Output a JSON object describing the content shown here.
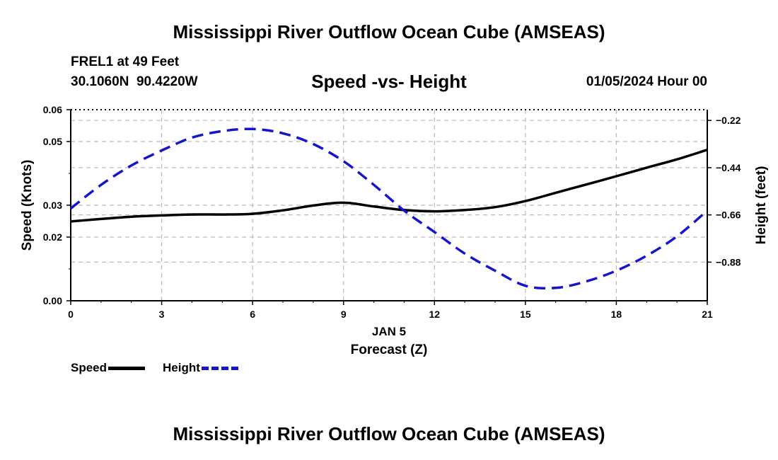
{
  "header": {
    "title": "Mississippi River Outflow Ocean Cube (AMSEAS)",
    "station": "FREL1 at 49 Feet",
    "coords": "30.1060N  90.4220W",
    "chart_title": "Speed -vs- Height",
    "date": "01/05/2024 Hour 00"
  },
  "footer": {
    "title": "Mississippi River Outflow Ocean Cube (AMSEAS)"
  },
  "legend": {
    "speed": "Speed",
    "height": "Height"
  },
  "colors": {
    "speed": "#000000",
    "height": "#1515cc",
    "grid": "#bbbbbb"
  },
  "chart_data": {
    "type": "line",
    "title": "Speed -vs- Height",
    "xlabel": "Forecast (Z)",
    "xlabel_date": "JAN 5",
    "xlim": [
      0,
      21
    ],
    "x_ticks": [
      0,
      3,
      6,
      9,
      12,
      15,
      18,
      21
    ],
    "x_tick_labels": [
      "0",
      "3",
      "6",
      "9",
      "12",
      "15",
      "18",
      "21"
    ],
    "ylabel_left": "Speed (Knots)",
    "ylim_left": [
      0,
      0.06
    ],
    "y_ticks_left": [
      0,
      0.02,
      0.03,
      0.05,
      0.06
    ],
    "y_tick_labels_left": [
      "0.00",
      "0.02",
      "0.03",
      "0.05",
      "0.06"
    ],
    "ylabel_right": "Height (feet)",
    "ylim_right": [
      -1.06,
      -0.17
    ],
    "y_ticks_right": [
      -0.22,
      -0.44,
      -0.66,
      -0.88
    ],
    "y_tick_labels_right": [
      "−0.22",
      "−0.44",
      "−0.66",
      "−0.88"
    ],
    "grid": true,
    "series": [
      {
        "name": "Speed",
        "axis": "left",
        "style": "solid",
        "x": [
          0,
          1,
          2,
          3,
          4,
          5,
          6,
          7,
          8,
          9,
          10,
          11,
          12,
          13,
          14,
          15,
          16,
          17,
          18,
          19,
          20,
          21
        ],
        "values": [
          0.0249,
          0.0257,
          0.0264,
          0.0268,
          0.0271,
          0.0271,
          0.0273,
          0.0284,
          0.0299,
          0.0308,
          0.0296,
          0.0285,
          0.0281,
          0.0285,
          0.0294,
          0.0313,
          0.0339,
          0.0365,
          0.0391,
          0.0418,
          0.0444,
          0.0474
        ]
      },
      {
        "name": "Height",
        "axis": "right",
        "style": "dashed",
        "x": [
          0,
          1,
          2,
          3,
          4,
          5,
          6,
          7,
          8,
          9,
          10,
          11,
          12,
          13,
          14,
          15,
          16,
          17,
          18,
          19,
          20,
          21
        ],
        "values": [
          -0.63,
          -0.52,
          -0.43,
          -0.36,
          -0.3,
          -0.27,
          -0.26,
          -0.28,
          -0.33,
          -0.41,
          -0.52,
          -0.64,
          -0.74,
          -0.84,
          -0.92,
          -0.99,
          -1.0,
          -0.97,
          -0.92,
          -0.85,
          -0.76,
          -0.64
        ]
      }
    ]
  }
}
